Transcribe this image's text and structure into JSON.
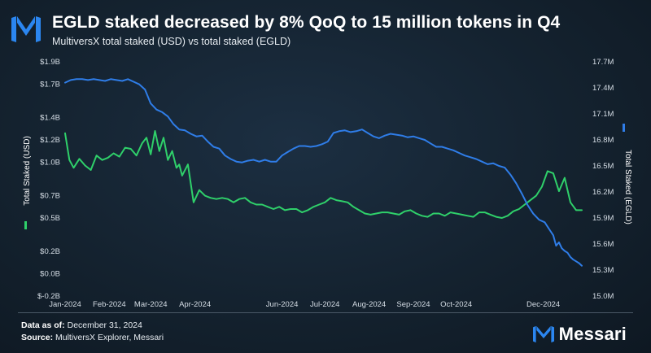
{
  "header": {
    "title": "EGLD staked decreased by 8% QoQ to 15 million tokens in Q4",
    "subtitle": "MultiversX total staked (USD) vs total staked (EGLD)"
  },
  "footer": {
    "data_as_of_label": "Data as of:",
    "data_as_of_value": "December 31, 2024",
    "source_label": "Source:",
    "source_value": "MultiversX Explorer, Messari",
    "brand": "Messari"
  },
  "colors": {
    "usd_series": "#2fd06a",
    "egld_series": "#2f7de8",
    "accent_logo": "#2b86f0"
  },
  "chart_data": {
    "type": "line",
    "x_tick_labels": [
      "Jan-2024",
      "Feb-2024",
      "Mar-2024",
      "Apr-2024",
      "Jun-2024",
      "Jul-2024",
      "Aug-2024",
      "Sep-2024",
      "Oct-2024",
      "Dec-2024"
    ],
    "x_domain_days": [
      0,
      366
    ],
    "x_tick_days": [
      0,
      31,
      60,
      91,
      152,
      182,
      213,
      244,
      274,
      335
    ],
    "y_left": {
      "label": "Total Staked (USD)",
      "range": [
        -0.2,
        1.9
      ],
      "ticks": [
        -0.2,
        0.0,
        0.2,
        0.5,
        0.7,
        1.0,
        1.2,
        1.4,
        1.7,
        1.9
      ],
      "tick_labels": [
        "$-0.2B",
        "$0.0B",
        "$0.2B",
        "$0.5B",
        "$0.7B",
        "$1.0B",
        "$1.2B",
        "$1.4B",
        "$1.7B",
        "$1.9B"
      ]
    },
    "y_right": {
      "label": "Total Staked (EGLD)",
      "range": [
        15.0,
        17.7
      ],
      "ticks": [
        15.0,
        15.3,
        15.6,
        15.9,
        16.2,
        16.5,
        16.8,
        17.1,
        17.4,
        17.7
      ],
      "tick_labels": [
        "15.0M",
        "15.3M",
        "15.6M",
        "15.9M",
        "16.2M",
        "16.5M",
        "16.8M",
        "17.1M",
        "17.4M",
        "17.7M"
      ]
    },
    "series": [
      {
        "name": "Total Staked (USD)",
        "axis": "left",
        "unit": "USD billions",
        "x": [
          0,
          3,
          6,
          10,
          14,
          18,
          22,
          26,
          30,
          34,
          38,
          42,
          46,
          50,
          54,
          57,
          60,
          63,
          66,
          69,
          72,
          75,
          78,
          80,
          82,
          86,
          90,
          94,
          98,
          102,
          106,
          110,
          114,
          118,
          122,
          126,
          130,
          134,
          138,
          142,
          146,
          150,
          154,
          158,
          162,
          166,
          170,
          174,
          178,
          182,
          186,
          190,
          194,
          198,
          202,
          206,
          210,
          214,
          218,
          222,
          226,
          230,
          234,
          238,
          242,
          246,
          250,
          254,
          258,
          262,
          266,
          270,
          274,
          278,
          282,
          286,
          290,
          294,
          298,
          302,
          306,
          310,
          314,
          318,
          322,
          326,
          330,
          334,
          338,
          342,
          346,
          350,
          354,
          358,
          362
        ],
        "y": [
          1.26,
          1.02,
          0.95,
          1.03,
          0.97,
          0.93,
          1.06,
          1.02,
          1.04,
          1.08,
          1.05,
          1.13,
          1.12,
          1.06,
          1.17,
          1.22,
          1.07,
          1.28,
          1.1,
          1.22,
          1.02,
          1.1,
          0.95,
          0.98,
          0.88,
          0.98,
          0.64,
          0.75,
          0.7,
          0.68,
          0.67,
          0.68,
          0.67,
          0.64,
          0.67,
          0.68,
          0.64,
          0.62,
          0.62,
          0.6,
          0.58,
          0.6,
          0.57,
          0.58,
          0.58,
          0.55,
          0.57,
          0.6,
          0.62,
          0.64,
          0.68,
          0.66,
          0.65,
          0.64,
          0.6,
          0.57,
          0.54,
          0.53,
          0.54,
          0.55,
          0.55,
          0.54,
          0.53,
          0.56,
          0.57,
          0.54,
          0.52,
          0.51,
          0.54,
          0.54,
          0.52,
          0.55,
          0.54,
          0.53,
          0.52,
          0.51,
          0.55,
          0.55,
          0.53,
          0.51,
          0.5,
          0.52,
          0.56,
          0.58,
          0.62,
          0.66,
          0.7,
          0.78,
          0.92,
          0.9,
          0.74,
          0.86,
          0.64,
          0.57,
          0.57
        ]
      },
      {
        "name": "Total Staked (EGLD)",
        "axis": "right",
        "unit": "EGLD millions",
        "x": [
          0,
          4,
          8,
          12,
          16,
          20,
          24,
          28,
          32,
          36,
          40,
          44,
          48,
          52,
          56,
          60,
          64,
          68,
          72,
          76,
          80,
          84,
          88,
          92,
          96,
          100,
          104,
          108,
          112,
          116,
          120,
          124,
          128,
          132,
          136,
          140,
          144,
          148,
          152,
          156,
          160,
          164,
          168,
          172,
          176,
          180,
          184,
          188,
          192,
          196,
          200,
          204,
          208,
          212,
          216,
          220,
          224,
          228,
          232,
          236,
          240,
          244,
          248,
          252,
          256,
          260,
          264,
          268,
          272,
          276,
          280,
          284,
          288,
          292,
          296,
          300,
          304,
          308,
          312,
          316,
          320,
          324,
          328,
          332,
          336,
          338,
          340,
          342,
          344,
          346,
          348,
          350,
          352,
          354,
          356,
          358,
          360,
          362
        ],
        "y": [
          17.46,
          17.49,
          17.5,
          17.5,
          17.49,
          17.5,
          17.49,
          17.48,
          17.5,
          17.49,
          17.48,
          17.5,
          17.47,
          17.44,
          17.38,
          17.22,
          17.15,
          17.12,
          17.07,
          16.98,
          16.92,
          16.91,
          16.87,
          16.84,
          16.85,
          16.78,
          16.72,
          16.7,
          16.62,
          16.58,
          16.55,
          16.54,
          16.56,
          16.57,
          16.55,
          16.57,
          16.55,
          16.55,
          16.62,
          16.66,
          16.7,
          16.73,
          16.73,
          16.72,
          16.73,
          16.75,
          16.78,
          16.88,
          16.9,
          16.91,
          16.89,
          16.9,
          16.92,
          16.88,
          16.84,
          16.82,
          16.85,
          16.87,
          16.86,
          16.85,
          16.83,
          16.84,
          16.82,
          16.8,
          16.76,
          16.72,
          16.72,
          16.7,
          16.68,
          16.65,
          16.62,
          16.6,
          16.58,
          16.55,
          16.52,
          16.53,
          16.5,
          16.48,
          16.4,
          16.3,
          16.18,
          16.05,
          15.95,
          15.88,
          15.85,
          15.8,
          15.75,
          15.7,
          15.58,
          15.62,
          15.55,
          15.52,
          15.5,
          15.45,
          15.42,
          15.4,
          15.38,
          15.35
        ]
      }
    ]
  }
}
